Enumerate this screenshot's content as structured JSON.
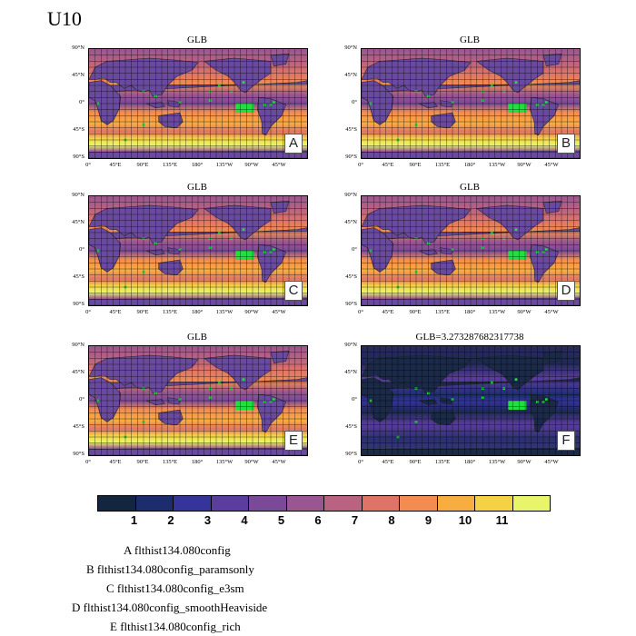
{
  "figure_title": "U10",
  "panels": [
    {
      "id": "A",
      "title": "GLB",
      "letter": "A",
      "diff": false
    },
    {
      "id": "B",
      "title": "GLB",
      "letter": "B",
      "diff": false
    },
    {
      "id": "C",
      "title": "GLB",
      "letter": "C",
      "diff": false
    },
    {
      "id": "D",
      "title": "GLB",
      "letter": "D",
      "diff": false
    },
    {
      "id": "E",
      "title": "GLB",
      "letter": "E",
      "diff": false
    },
    {
      "id": "F",
      "title": "GLB=3.273287682317738",
      "letter": "F",
      "diff": true
    }
  ],
  "y_ticks": [
    "90°N",
    "45°N",
    "0°",
    "45°S",
    "90°S"
  ],
  "x_ticks": [
    "0°",
    "45°E",
    "90°E",
    "135°E",
    "180°",
    "135°W",
    "90°W",
    "45°W"
  ],
  "colorbar": {
    "colors": [
      "#12263f",
      "#1c2d6e",
      "#34349a",
      "#5a3d9e",
      "#7a4a98",
      "#9a5690",
      "#b96282",
      "#de7468",
      "#f28c50",
      "#f8ad40",
      "#f5d244",
      "#e8f46a"
    ],
    "ticks": [
      "1",
      "2",
      "3",
      "4",
      "5",
      "6",
      "7",
      "8",
      "9",
      "10",
      "11"
    ]
  },
  "legend": [
    {
      "letter": "A",
      "name": "flthist134.080config"
    },
    {
      "letter": "B",
      "name": "flthist134.080config_paramsonly"
    },
    {
      "letter": "C",
      "name": "flthist134.080config_e3sm"
    },
    {
      "letter": "D",
      "name": "flthist134.080config_smoothHeaviside"
    },
    {
      "letter": "E",
      "name": "flthist134.080config_rich"
    }
  ]
}
